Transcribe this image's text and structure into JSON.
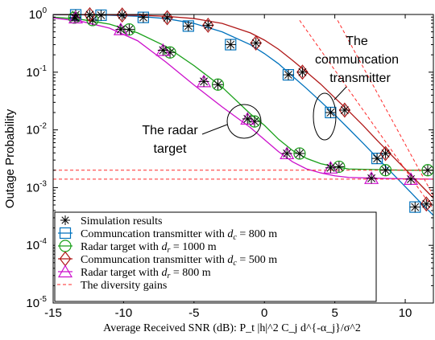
{
  "chart_data": {
    "type": "line",
    "title": "",
    "xlabel": "Average Received SNR (dB): P_t |h|^2 C_j d^{-α_j}/σ^2",
    "ylabel": "Outage Probability",
    "xlim": [
      -15,
      12
    ],
    "ylim": [
      1e-05,
      1
    ],
    "yscale": "log",
    "xticks": [
      -15,
      -10,
      -5,
      0,
      5,
      10
    ],
    "yticks": [
      {
        "value": 1,
        "mantissa": "10",
        "exp": "0"
      },
      {
        "value": 0.1,
        "mantissa": "10",
        "exp": "-1"
      },
      {
        "value": 0.01,
        "mantissa": "10",
        "exp": "-2"
      },
      {
        "value": 0.001,
        "mantissa": "10",
        "exp": "-3"
      },
      {
        "value": 0.0001,
        "mantissa": "10",
        "exp": "-4"
      },
      {
        "value": 1e-05,
        "mantissa": "10",
        "exp": "-5"
      }
    ],
    "grid": false,
    "legend_position": "bottom-left",
    "series": [
      {
        "name": "Communcation transmitter with d_c = 800 m",
        "color": "#0072BD",
        "marker": "square",
        "curve_x": [
          -15,
          -13,
          -11,
          -9,
          -7,
          -5,
          -3,
          -1,
          0,
          1,
          2,
          3,
          4,
          5,
          6,
          7,
          8,
          9,
          10,
          11,
          12
        ],
        "curve_y": [
          0.99,
          0.985,
          0.97,
          0.93,
          0.85,
          0.7,
          0.5,
          0.3,
          0.21,
          0.14,
          0.085,
          0.052,
          0.031,
          0.0182,
          0.0104,
          0.0059,
          0.0033,
          0.00185,
          0.00104,
          0.00058,
          0.00033
        ],
        "points_x": [
          -13.4,
          -11.6,
          -8.6,
          -5.4,
          -2.4,
          1.7,
          4.7,
          8.0,
          10.7
        ],
        "points_y": [
          0.985,
          0.97,
          0.89,
          0.63,
          0.3,
          0.09,
          0.02,
          0.0032,
          0.00046
        ]
      },
      {
        "name": "Radar target with d_r = 1000 m",
        "color": "#1AA01A",
        "marker": "circle",
        "curve_x": [
          -15,
          -13,
          -11,
          -9,
          -7,
          -5,
          -3,
          -1,
          0,
          1,
          2,
          3,
          4,
          5,
          6,
          8,
          10,
          12
        ],
        "curve_y": [
          0.9,
          0.82,
          0.68,
          0.48,
          0.28,
          0.13,
          0.055,
          0.019,
          0.012,
          0.0069,
          0.0044,
          0.0032,
          0.0026,
          0.0023,
          0.0021,
          0.00205,
          0.002,
          0.002
        ],
        "points_x": [
          -13.5,
          -12.2,
          -9.6,
          -6.7,
          -3.3,
          -0.7,
          2.5,
          5.3,
          8.6,
          11.6
        ],
        "points_y": [
          0.88,
          0.8,
          0.55,
          0.22,
          0.061,
          0.014,
          0.0039,
          0.0023,
          0.002,
          0.002
        ]
      },
      {
        "name": "Communcation transmitter with d_c = 500 m",
        "color": "#B01818",
        "marker": "diamond",
        "curve_x": [
          -15,
          -13,
          -11,
          -9,
          -7,
          -5,
          -3,
          -1,
          0,
          1,
          2,
          3,
          4,
          5,
          6,
          7,
          8,
          9,
          10,
          11,
          12
        ],
        "curve_y": [
          0.995,
          0.99,
          0.985,
          0.97,
          0.93,
          0.85,
          0.7,
          0.48,
          0.36,
          0.25,
          0.16,
          0.1,
          0.062,
          0.036,
          0.021,
          0.012,
          0.0066,
          0.0037,
          0.0021,
          0.00117,
          0.00066
        ],
        "points_x": [
          -12.4,
          -10.1,
          -6.9,
          -4.0,
          -0.6,
          2.7,
          5.7,
          8.6,
          11.5
        ],
        "points_y": [
          0.99,
          0.98,
          0.88,
          0.65,
          0.32,
          0.1,
          0.022,
          0.0039,
          0.00052
        ]
      },
      {
        "name": "Radar target with d_r = 800 m",
        "color": "#CC11CC",
        "marker": "triangle",
        "curve_x": [
          -15,
          -13,
          -11,
          -9,
          -7,
          -5,
          -3,
          -1,
          0,
          1,
          2,
          3,
          4,
          5,
          6,
          8,
          10,
          12
        ],
        "curve_y": [
          0.87,
          0.76,
          0.58,
          0.35,
          0.15,
          0.06,
          0.025,
          0.011,
          0.0068,
          0.0042,
          0.0028,
          0.0021,
          0.0018,
          0.0016,
          0.0015,
          0.00145,
          0.00142,
          0.0014
        ],
        "points_x": [
          -13.4,
          -10.2,
          -7.2,
          -4.3,
          -1.2,
          1.6,
          4.7,
          7.6,
          10.4
        ],
        "points_y": [
          0.88,
          0.55,
          0.24,
          0.069,
          0.0155,
          0.0039,
          0.0022,
          0.00145,
          0.0014
        ]
      }
    ],
    "asymptotes": {
      "name": "The diversity gains",
      "color": "#FF2A2A",
      "lines": [
        {
          "x": [
            2.5,
            12
          ],
          "y": [
            0.79,
            0.00042
          ]
        },
        {
          "x": [
            5.2,
            12
          ],
          "y": [
            0.79,
            0.00072
          ]
        },
        {
          "x": [
            -15,
            12
          ],
          "y": [
            0.002,
            0.002
          ]
        },
        {
          "x": [
            -15,
            12
          ],
          "y": [
            0.0014,
            0.0014
          ]
        }
      ]
    },
    "simulation_marker": {
      "name": "Simulation results",
      "symbol": "asterisk"
    },
    "annotations": [
      {
        "lines": [
          "The",
          "communcation",
          "transmitter"
        ]
      },
      {
        "lines": [
          "The radar",
          "target"
        ]
      }
    ]
  }
}
